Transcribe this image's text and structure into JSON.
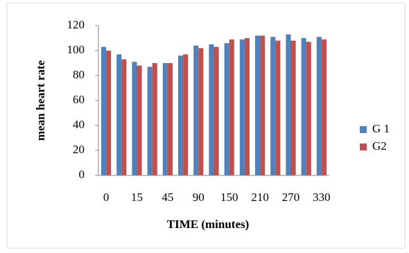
{
  "chart_data": {
    "type": "bar",
    "xlabel": "TIME (minutes)",
    "ylabel": "mean heart rate",
    "categories": [
      "0",
      null,
      "15",
      null,
      "45",
      null,
      "90",
      null,
      "150",
      null,
      "210",
      null,
      "270",
      null,
      "330"
    ],
    "series": [
      {
        "name": "G 1",
        "color": "#4f81bd",
        "values": [
          103,
          97,
          91,
          87,
          90,
          96,
          104,
          105,
          106,
          109,
          112,
          111,
          113,
          110,
          111
        ]
      },
      {
        "name": "G2",
        "color": "#c0504d",
        "values": [
          100,
          93,
          88,
          90,
          90,
          97,
          102,
          103,
          109,
          110,
          112,
          108,
          108,
          107,
          109
        ]
      }
    ],
    "ylim": [
      0,
      120
    ],
    "yticks": [
      0,
      20,
      40,
      60,
      80,
      100,
      120
    ],
    "grid": false,
    "legend": "right"
  }
}
